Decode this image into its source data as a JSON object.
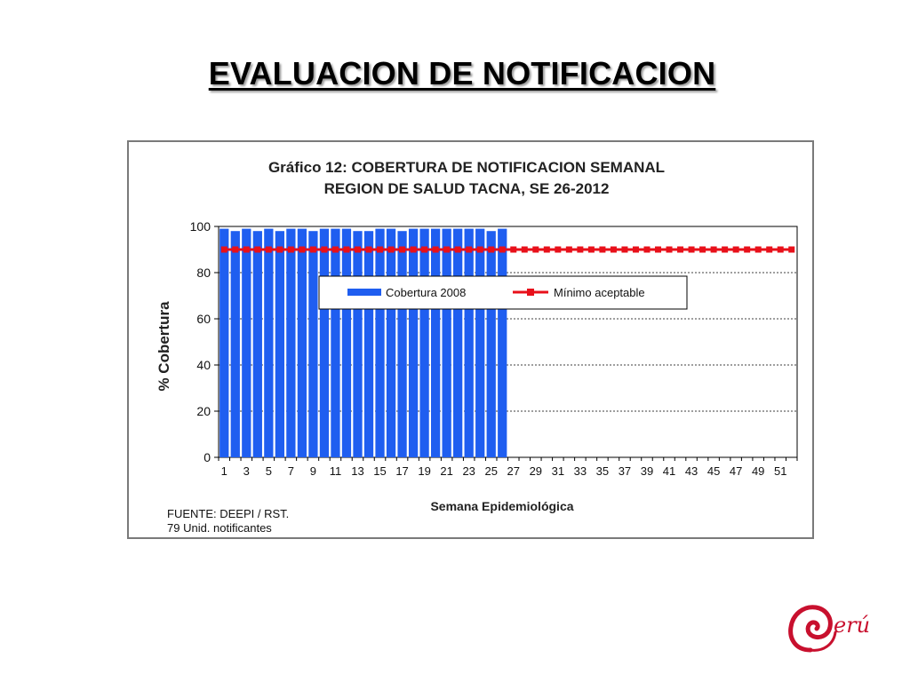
{
  "slide": {
    "title": "EVALUACION DE  NOTIFICACION"
  },
  "logo": {
    "text": "Perú",
    "icon": "marca-peru-spiral-icon",
    "color": "#c8102e"
  },
  "chart_data": {
    "type": "bar",
    "title": "Gráfico 12: COBERTURA DE NOTIFICACION SEMANAL",
    "subtitle": "REGION DE SALUD TACNA, SE 26-2012",
    "xlabel": "Semana Epidemiológica",
    "ylabel": "% Cobertura",
    "ylim": [
      0,
      100
    ],
    "yticks": [
      0,
      20,
      40,
      60,
      80,
      100
    ],
    "xtick_labels": [
      "1",
      "3",
      "5",
      "7",
      "9",
      "11",
      "13",
      "15",
      "17",
      "19",
      "21",
      "23",
      "25",
      "27",
      "29",
      "31",
      "33",
      "35",
      "37",
      "39",
      "41",
      "43",
      "45",
      "47",
      "49",
      "51"
    ],
    "grid": "horizontal dashed",
    "legend_position": "upper-center",
    "colors": {
      "bars": "#1f5ef0",
      "line": "#e8101a"
    },
    "series": [
      {
        "name": "Cobertura 2008",
        "type": "bar",
        "x": [
          1,
          2,
          3,
          4,
          5,
          6,
          7,
          8,
          9,
          10,
          11,
          12,
          13,
          14,
          15,
          16,
          17,
          18,
          19,
          20,
          21,
          22,
          23,
          24,
          25,
          26
        ],
        "values": [
          99,
          98,
          99,
          98,
          99,
          98,
          99,
          99,
          98,
          99,
          99,
          99,
          98,
          98,
          99,
          99,
          98,
          99,
          99,
          99,
          99,
          99,
          99,
          99,
          98,
          99
        ]
      },
      {
        "name": "Mínimo aceptable",
        "type": "line",
        "x": [
          1,
          2,
          3,
          4,
          5,
          6,
          7,
          8,
          9,
          10,
          11,
          12,
          13,
          14,
          15,
          16,
          17,
          18,
          19,
          20,
          21,
          22,
          23,
          24,
          25,
          26,
          27,
          28,
          29,
          30,
          31,
          32,
          33,
          34,
          35,
          36,
          37,
          38,
          39,
          40,
          41,
          42,
          43,
          44,
          45,
          46,
          47,
          48,
          49,
          50,
          51,
          52
        ],
        "values": [
          90,
          90,
          90,
          90,
          90,
          90,
          90,
          90,
          90,
          90,
          90,
          90,
          90,
          90,
          90,
          90,
          90,
          90,
          90,
          90,
          90,
          90,
          90,
          90,
          90,
          90,
          90,
          90,
          90,
          90,
          90,
          90,
          90,
          90,
          90,
          90,
          90,
          90,
          90,
          90,
          90,
          90,
          90,
          90,
          90,
          90,
          90,
          90,
          90,
          90,
          90,
          90
        ]
      }
    ],
    "footnote": [
      "FUENTE: DEEPI / RST.",
      "79 Unid. notificantes"
    ]
  }
}
